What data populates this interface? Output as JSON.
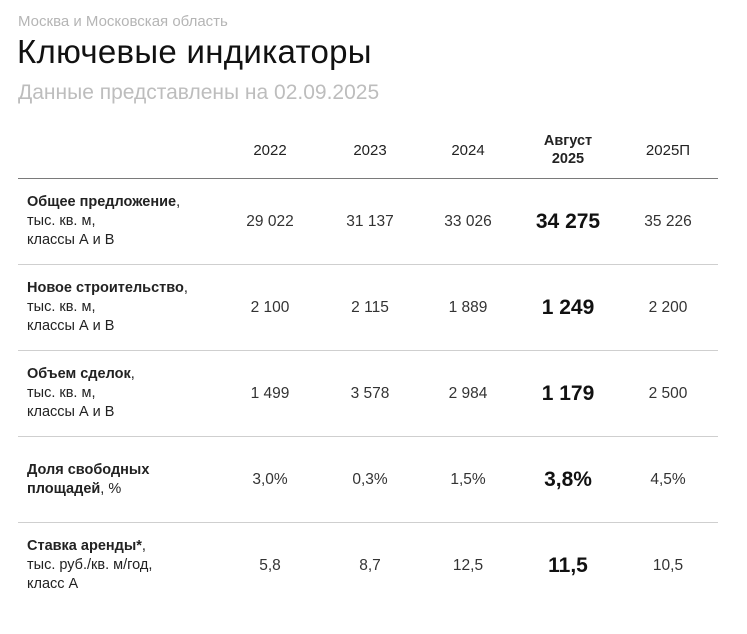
{
  "header": {
    "region": "Москва и Московская область",
    "title": "Ключевые индикаторы",
    "subtitle": "Данные представлены на 02.09.2025"
  },
  "table": {
    "columns": [
      "2022",
      "2023",
      "2024",
      "Август\n2025",
      "2025П"
    ],
    "rows": [
      {
        "label_bold": "Общее предложение",
        "label_rest": ",\nтыс. кв. м,\nклассы А и В",
        "values": [
          "29 022",
          "31 137",
          "33 026",
          "34 275",
          "35 226"
        ]
      },
      {
        "label_bold": "Новое строительство",
        "label_rest": ",\nтыс. кв. м,\nклассы А и В",
        "values": [
          "2 100",
          "2 115",
          "1 889",
          "1 249",
          "2 200"
        ]
      },
      {
        "label_bold": "Объем сделок",
        "label_rest": ",\nтыс. кв. м,\nклассы А и В",
        "values": [
          "1 499",
          "3 578",
          "2 984",
          "1 179",
          "2 500"
        ]
      },
      {
        "label_bold": "Доля свободных\nплощадей",
        "label_rest": ", %",
        "values": [
          "3,0%",
          "0,3%",
          "1,5%",
          "3,8%",
          "4,5%"
        ]
      },
      {
        "label_bold": "Ставка аренды*",
        "label_rest": ",\nтыс. руб./кв. м/год,\nкласс А",
        "values": [
          "5,8",
          "8,7",
          "12,5",
          "11,5",
          "10,5"
        ]
      }
    ]
  }
}
